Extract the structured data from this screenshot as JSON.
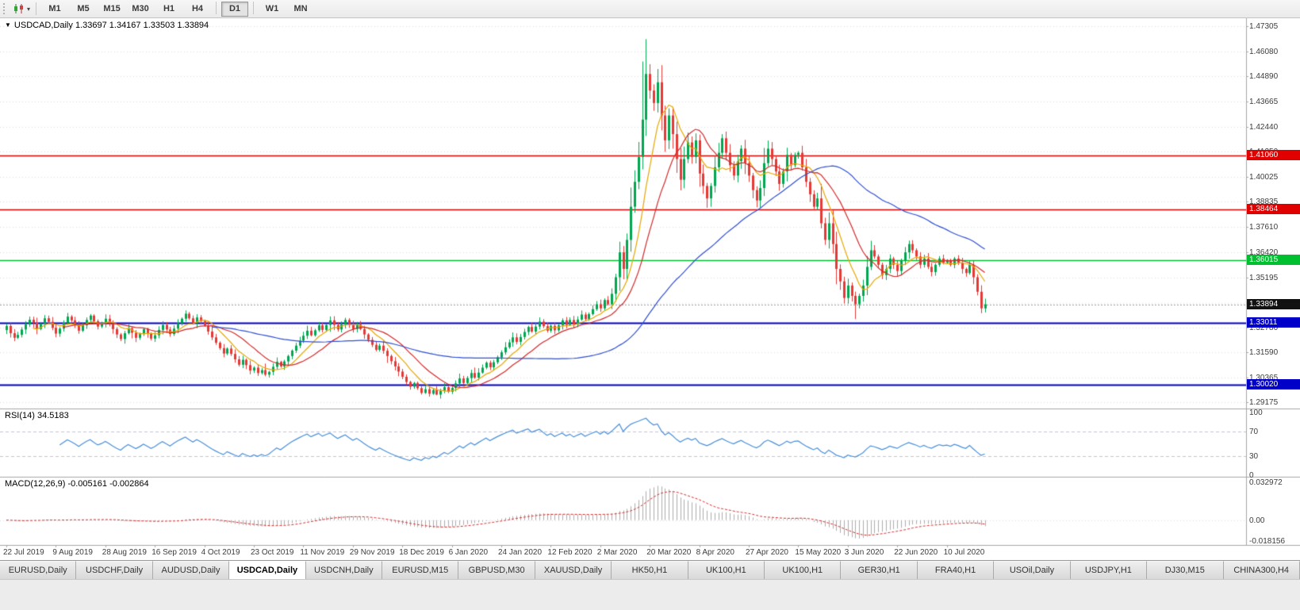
{
  "toolbar": {
    "timeframes": [
      "M1",
      "M5",
      "M15",
      "M30",
      "H1",
      "H4",
      "D1",
      "W1",
      "MN"
    ],
    "active_timeframe": "D1",
    "dropdown_arrow": "▾"
  },
  "chart_data": {
    "type": "candlestick",
    "symbol": "USDCAD",
    "timeframe": "Daily",
    "title_text": "USDCAD,Daily",
    "ohlc_text": "1.33697 1.34167 1.33503 1.33894",
    "current_bar": {
      "open": 1.33697,
      "high": 1.34167,
      "low": 1.33503,
      "close": 1.33894
    },
    "dropdown_triangle": "▼",
    "price_range": {
      "top": 1.47305,
      "bottom": 1.29175
    },
    "y_axis_ticks": [
      "1.47305",
      "1.46080",
      "1.44890",
      "1.43665",
      "1.42440",
      "1.41250",
      "1.40025",
      "1.38835",
      "1.37610",
      "1.36420",
      "1.35195",
      "1.33970",
      "1.32780",
      "1.31590",
      "1.30365",
      "1.29175"
    ],
    "x_axis_labels": [
      "22 Jul 2019",
      "9 Aug 2019",
      "28 Aug 2019",
      "16 Sep 2019",
      "4 Oct 2019",
      "23 Oct 2019",
      "11 Nov 2019",
      "29 Nov 2019",
      "18 Dec 2019",
      "6 Jan 2020",
      "24 Jan 2020",
      "12 Feb 2020",
      "2 Mar 2020",
      "20 Mar 2020",
      "8 Apr 2020",
      "27 Apr 2020",
      "15 May 2020",
      "3 Jun 2020",
      "22 Jun 2020",
      "10 Jul 2020"
    ],
    "bars_per_label": 13,
    "open_first": 1.3265,
    "closes": [
      1.3285,
      1.325,
      1.3228,
      1.3242,
      1.3268,
      1.3292,
      1.3315,
      1.33,
      1.327,
      1.3296,
      1.3322,
      1.3305,
      1.3276,
      1.3248,
      1.3272,
      1.33,
      1.333,
      1.3312,
      1.329,
      1.3262,
      1.3288,
      1.3314,
      1.3335,
      1.3308,
      1.3282,
      1.3296,
      1.332,
      1.3298,
      1.327,
      1.3244,
      1.3222,
      1.325,
      1.3274,
      1.3252,
      1.3228,
      1.3246,
      1.327,
      1.3248,
      1.3224,
      1.324,
      1.3266,
      1.329,
      1.3268,
      1.3246,
      1.3272,
      1.3298,
      1.332,
      1.3344,
      1.3322,
      1.33,
      1.3326,
      1.3308,
      1.3286,
      1.3258,
      1.323,
      1.3204,
      1.3178,
      1.3152,
      1.3176,
      1.315,
      1.3124,
      1.3098,
      1.3122,
      1.3096,
      1.307,
      1.3084,
      1.3058,
      1.3072,
      1.305,
      1.3064,
      1.3088,
      1.3112,
      1.309,
      1.3114,
      1.314,
      1.3166,
      1.319,
      1.3214,
      1.3238,
      1.3262,
      1.324,
      1.3264,
      1.3288,
      1.3266,
      1.329,
      1.3312,
      1.329,
      1.3268,
      1.3292,
      1.3314,
      1.3292,
      1.327,
      1.3292,
      1.327,
      1.3244,
      1.3218,
      1.3194,
      1.317,
      1.319,
      1.3165,
      1.314,
      1.3115,
      1.309,
      1.3065,
      1.304,
      1.3015,
      1.2992,
      1.301,
      1.2985,
      1.2962,
      1.298,
      1.2958,
      1.2976,
      1.2954,
      1.2972,
      1.299,
      1.2968,
      1.2986,
      1.3008,
      1.3032,
      1.301,
      1.3034,
      1.3058,
      1.3036,
      1.306,
      1.3084,
      1.3108,
      1.3086,
      1.311,
      1.3134,
      1.3158,
      1.3182,
      1.3206,
      1.323,
      1.3208,
      1.3232,
      1.3256,
      1.328,
      1.3258,
      1.3282,
      1.3306,
      1.3284,
      1.3262,
      1.3286,
      1.3264,
      1.3288,
      1.3312,
      1.329,
      1.3314,
      1.3292,
      1.3316,
      1.334,
      1.3318,
      1.3342,
      1.3366,
      1.339,
      1.337,
      1.341,
      1.339,
      1.344,
      1.352,
      1.364,
      1.356,
      1.37,
      1.386,
      1.398,
      1.41,
      1.428,
      1.45,
      1.442,
      1.436,
      1.446,
      1.43,
      1.418,
      1.43,
      1.421,
      1.409,
      1.399,
      1.409,
      1.417,
      1.41,
      1.418,
      1.402,
      1.396,
      1.39,
      1.396,
      1.405,
      1.412,
      1.419,
      1.412,
      1.406,
      1.401,
      1.408,
      1.414,
      1.407,
      1.401,
      1.394,
      1.389,
      1.395,
      1.407,
      1.414,
      1.409,
      1.403,
      1.397,
      1.403,
      1.411,
      1.406,
      1.411,
      1.412,
      1.405,
      1.398,
      1.392,
      1.386,
      1.39,
      1.378,
      1.37,
      1.378,
      1.368,
      1.356,
      1.35,
      1.342,
      1.348,
      1.343,
      1.339,
      1.343,
      1.348,
      1.357,
      1.365,
      1.362,
      1.358,
      1.353,
      1.356,
      1.361,
      1.358,
      1.355,
      1.36,
      1.364,
      1.368,
      1.365,
      1.362,
      1.358,
      1.361,
      1.357,
      1.3545,
      1.358,
      1.361,
      1.359,
      1.36,
      1.358,
      1.361,
      1.359,
      1.356,
      1.354,
      1.358,
      1.352,
      1.345,
      1.337,
      1.33894
    ],
    "overrides": {
      "113": {
        "low": 1.2951
      },
      "167": {
        "high": 1.456
      },
      "168": {
        "high": 1.4668
      },
      "184": {
        "low": 1.3855
      },
      "223": {
        "low": 1.3318
      },
      "257": {
        "open": 1.33697,
        "high": 1.34167,
        "low": 1.33503,
        "close": 1.33894
      }
    },
    "moving_averages": [
      {
        "name": "fast",
        "period": 8,
        "color": "#E6A800"
      },
      {
        "name": "mid",
        "period": 16,
        "color": "#D42A2A"
      },
      {
        "name": "slow",
        "period": 55,
        "color": "#2F4FD4"
      }
    ],
    "horizontal_lines": [
      {
        "value": 1.4106,
        "label": "1.41060",
        "color": "#E00000",
        "width": 1.4
      },
      {
        "value": 1.38464,
        "label": "1.38464",
        "color": "#E00000",
        "width": 1.4
      },
      {
        "value": 1.36015,
        "label": "1.36015",
        "color": "#00C030",
        "width": 1.6
      },
      {
        "value": 1.33011,
        "label": "1.33011",
        "color": "#0000C8",
        "width": 2.0
      },
      {
        "value": 1.3002,
        "label": "1.30020",
        "color": "#0000C8",
        "width": 2.0
      }
    ],
    "current_price_badge": {
      "value": 1.33894,
      "label": "1.33894",
      "color": "#111111"
    },
    "rsi": {
      "label_text": "RSI(14) 34.5183",
      "name": "RSI",
      "period": 14,
      "value": 34.5183,
      "level_labels": [
        "100",
        "70",
        "30",
        "0"
      ],
      "levels": [
        100,
        70,
        30,
        0
      ],
      "dashed_levels": [
        70,
        30
      ],
      "color": "#4A90D9"
    },
    "macd": {
      "label_text": "MACD(12,26,9) -0.005161 -0.002864",
      "name": "MACD",
      "fast": 12,
      "slow": 26,
      "signal": 9,
      "macd_value": -0.005161,
      "signal_value": -0.002864,
      "axis_labels": [
        "0.032972",
        "0.00",
        "-0.018156"
      ],
      "axis_values": [
        0.032972,
        0,
        -0.018156
      ],
      "hist_color": "#ADADAD",
      "signal_color": "#D42A2A"
    },
    "colors": {
      "up": "#00A650",
      "down": "#E53935",
      "grid": "#DCDCE2",
      "separator": "#A6A6A6",
      "axis_text": "#3D3D3D",
      "bid_line": "#9A9A9A"
    }
  },
  "tabs": {
    "active": "USDCAD,Daily",
    "items": [
      "EURUSD,Daily",
      "USDCHF,Daily",
      "AUDUSD,Daily",
      "USDCAD,Daily",
      "USDCNH,Daily",
      "EURUSD,M15",
      "GBPUSD,M30",
      "XAUUSD,Daily",
      "HK50,H1",
      "UK100,H1",
      "UK100,H1",
      "GER30,H1",
      "FRA40,H1",
      "USOil,Daily",
      "USDJPY,H1",
      "DJ30,M15",
      "CHINA300,H4"
    ]
  }
}
